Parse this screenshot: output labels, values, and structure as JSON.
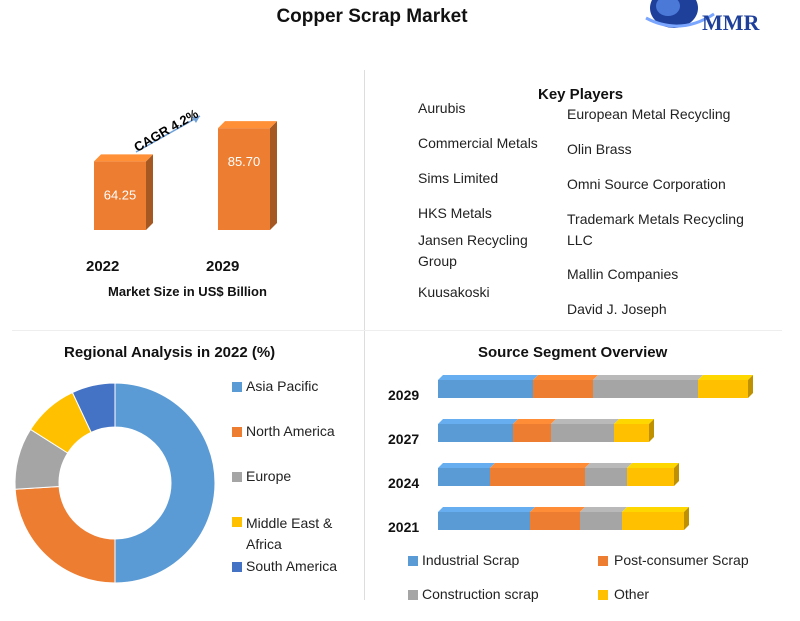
{
  "header": {
    "title": "Copper Scrap Market",
    "logo_text": "MMR"
  },
  "colors": {
    "asia": "#5b9bd5",
    "north_america": "#ed7d31",
    "europe": "#a5a5a5",
    "mea": "#ffc000",
    "south_america": "#4472c4",
    "bar": "#ed7d31"
  },
  "market_size": {
    "cagr_label": "CAGR 4.2%",
    "axis_label": "Market Size in US$ Billion",
    "years": [
      "2022",
      "2029"
    ],
    "values": [
      "64.25",
      "85.70"
    ]
  },
  "key_players": {
    "title": "Key Players",
    "left": [
      "Aurubis",
      "Commercial Metals",
      "Sims Limited",
      "HKS Metals",
      "Jansen Recycling Group",
      "Kuusakoski"
    ],
    "right": [
      "European Metal Recycling",
      "Olin Brass",
      "Omni Source Corporation",
      "Trademark Metals Recycling LLC",
      "Mallin Companies",
      "David J. Joseph"
    ]
  },
  "regional": {
    "title": "Regional Analysis in 2022 (%)",
    "legend": [
      "Asia Pacific",
      "North America",
      "Europe",
      "Middle East & Africa",
      "South America"
    ]
  },
  "source": {
    "title": "Source Segment Overview",
    "legend": [
      "Industrial Scrap",
      "Post-consumer Scrap",
      "Construction scrap",
      "Other"
    ]
  },
  "chart_data": [
    {
      "type": "bar",
      "categories": [
        "2022",
        "2029"
      ],
      "values": [
        64.25,
        85.7
      ],
      "title": "",
      "xlabel": "Market Size in US$ Billion",
      "annotation": "CAGR 4.2%"
    },
    {
      "type": "pie",
      "title": "Regional Analysis in 2022 (%)",
      "categories": [
        "Asia Pacific",
        "North America",
        "Europe",
        "Middle East & Africa",
        "South America"
      ],
      "values": [
        50,
        24,
        10,
        9,
        7
      ],
      "legend": "right"
    },
    {
      "type": "bar",
      "orientation": "horizontal",
      "stacked": true,
      "title": "Source Segment Overview",
      "categories": [
        "2029",
        "2027",
        "2024",
        "2021"
      ],
      "series": [
        {
          "name": "Industrial Scrap",
          "values": [
            95,
            75,
            52,
            92
          ]
        },
        {
          "name": "Post-consumer Scrap",
          "values": [
            60,
            38,
            95,
            50
          ]
        },
        {
          "name": "Construction scrap",
          "values": [
            105,
            63,
            42,
            42
          ]
        },
        {
          "name": "Other",
          "values": [
            50,
            35,
            47,
            62
          ]
        }
      ],
      "legend": "bottom"
    }
  ]
}
